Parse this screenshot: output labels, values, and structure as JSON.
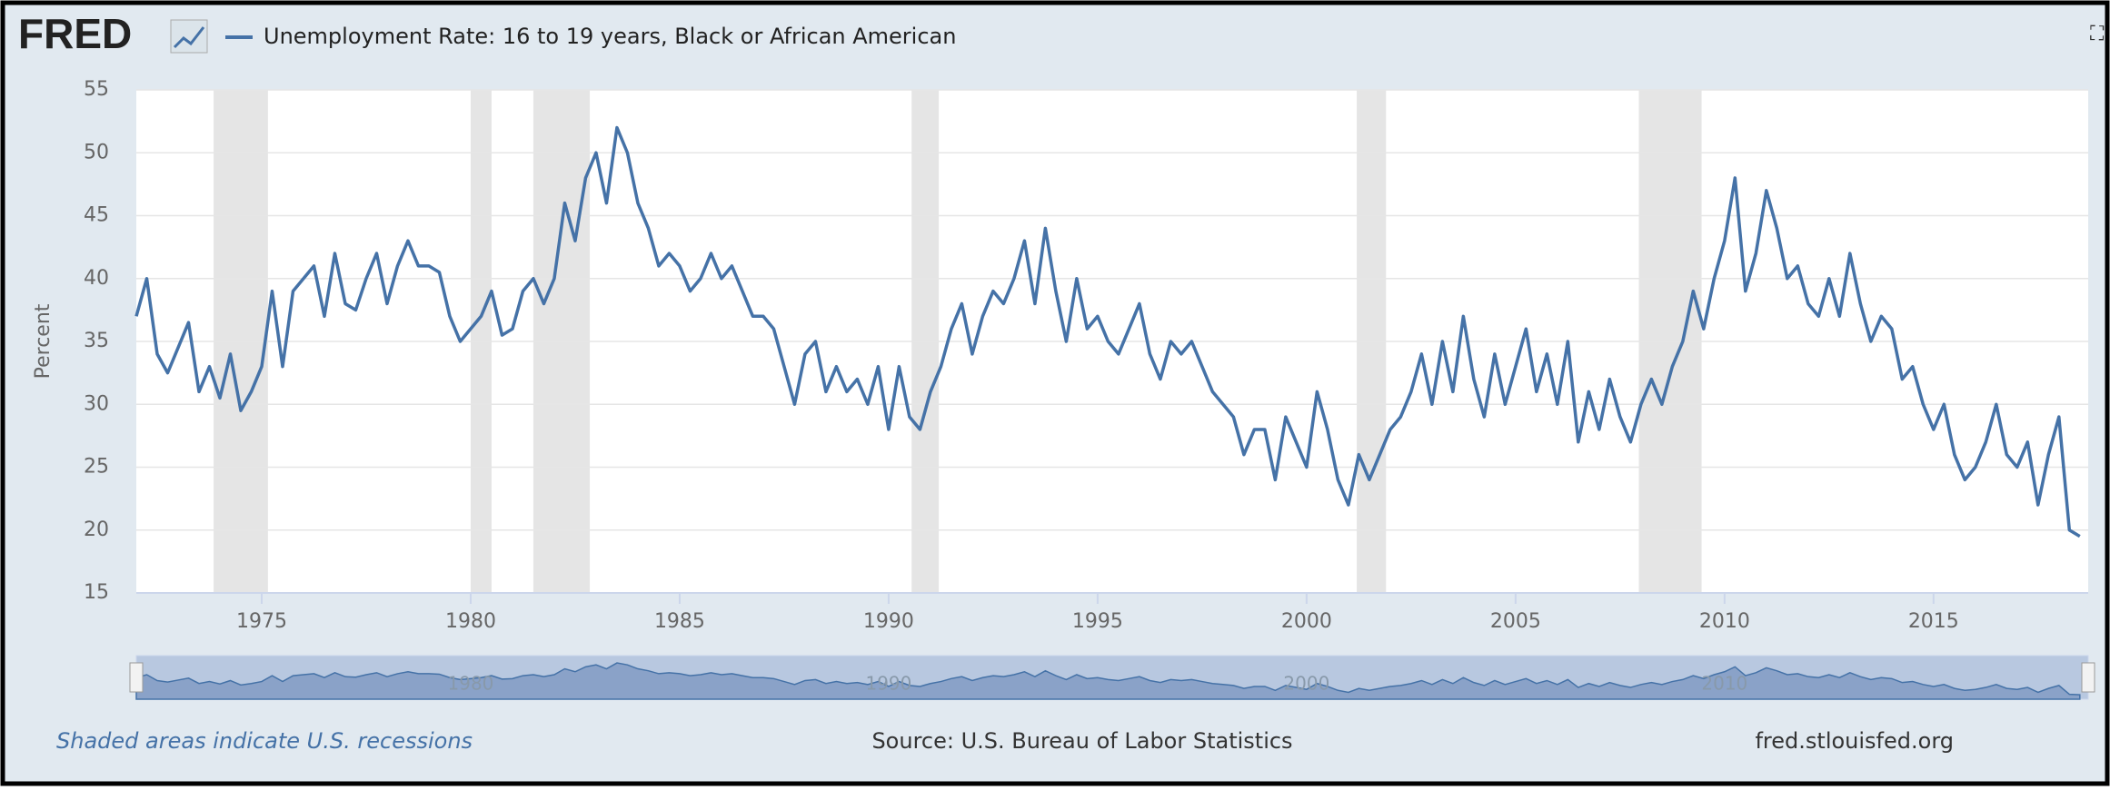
{
  "chart_data": {
    "type": "line",
    "logo": "FRED",
    "title": "Unemployment Rate: 16 to 19 years, Black or African American",
    "ylabel": "Percent",
    "series": [
      {
        "name": "Unemployment Rate: 16 to 19 years, Black or African American",
        "color": "#4572a7",
        "x": [
          1972,
          1972.25,
          1972.5,
          1972.75,
          1973,
          1973.25,
          1973.5,
          1973.75,
          1974,
          1974.25,
          1974.5,
          1974.75,
          1975,
          1975.25,
          1975.5,
          1975.75,
          1976,
          1976.25,
          1976.5,
          1976.75,
          1977,
          1977.25,
          1977.5,
          1977.75,
          1978,
          1978.25,
          1978.5,
          1978.75,
          1979,
          1979.25,
          1979.5,
          1979.75,
          1980,
          1980.25,
          1980.5,
          1980.75,
          1981,
          1981.25,
          1981.5,
          1981.75,
          1982,
          1982.25,
          1982.5,
          1982.75,
          1983,
          1983.25,
          1983.5,
          1983.75,
          1984,
          1984.25,
          1984.5,
          1984.75,
          1985,
          1985.25,
          1985.5,
          1985.75,
          1986,
          1986.25,
          1986.5,
          1986.75,
          1987,
          1987.25,
          1987.5,
          1987.75,
          1988,
          1988.25,
          1988.5,
          1988.75,
          1989,
          1989.25,
          1989.5,
          1989.75,
          1990,
          1990.25,
          1990.5,
          1990.75,
          1991,
          1991.25,
          1991.5,
          1991.75,
          1992,
          1992.25,
          1992.5,
          1992.75,
          1993,
          1993.25,
          1993.5,
          1993.75,
          1994,
          1994.25,
          1994.5,
          1994.75,
          1995,
          1995.25,
          1995.5,
          1995.75,
          1996,
          1996.25,
          1996.5,
          1996.75,
          1997,
          1997.25,
          1997.5,
          1997.75,
          1998,
          1998.25,
          1998.5,
          1998.75,
          1999,
          1999.25,
          1999.5,
          1999.75,
          2000,
          2000.25,
          2000.5,
          2000.75,
          2001,
          2001.25,
          2001.5,
          2001.75,
          2002,
          2002.25,
          2002.5,
          2002.75,
          2003,
          2003.25,
          2003.5,
          2003.75,
          2004,
          2004.25,
          2004.5,
          2004.75,
          2005,
          2005.25,
          2005.5,
          2005.75,
          2006,
          2006.25,
          2006.5,
          2006.75,
          2007,
          2007.25,
          2007.5,
          2007.75,
          2008,
          2008.25,
          2008.5,
          2008.75,
          2009,
          2009.25,
          2009.5,
          2009.75,
          2010,
          2010.25,
          2010.5,
          2010.75,
          2011,
          2011.25,
          2011.5,
          2011.75,
          2012,
          2012.25,
          2012.5,
          2012.75,
          2013,
          2013.25,
          2013.5,
          2013.75,
          2014,
          2014.25,
          2014.5,
          2014.75,
          2015,
          2015.25,
          2015.5,
          2015.75,
          2016,
          2016.25,
          2016.5,
          2016.75,
          2017,
          2017.25,
          2017.5,
          2017.75,
          2018,
          2018.25,
          2018.5
        ],
        "values": [
          37,
          40,
          34,
          32.5,
          34.5,
          36.5,
          31,
          33,
          30.5,
          34,
          29.5,
          31,
          33,
          39,
          33,
          39,
          40,
          41,
          37,
          42,
          38,
          37.5,
          40,
          42,
          38,
          41,
          43,
          41,
          41,
          40.5,
          37,
          35,
          36,
          37,
          39,
          35.5,
          36,
          39,
          40,
          38,
          40,
          46,
          43,
          48,
          50,
          46,
          52,
          50,
          46,
          44,
          41,
          42,
          41,
          39,
          40,
          42,
          40,
          41,
          39,
          37,
          37,
          36,
          33,
          30,
          34,
          35,
          31,
          33,
          31,
          32,
          30,
          33,
          28,
          33,
          29,
          28,
          31,
          33,
          36,
          38,
          34,
          37,
          39,
          38,
          40,
          43,
          38,
          44,
          39,
          35,
          40,
          36,
          37,
          35,
          34,
          36,
          38,
          34,
          32,
          35,
          34,
          35,
          33,
          31,
          30,
          29,
          26,
          28,
          28,
          24,
          29,
          27,
          25,
          31,
          28,
          24,
          22,
          26,
          24,
          26,
          28,
          29,
          31,
          34,
          30,
          35,
          31,
          37,
          32,
          29,
          34,
          30,
          33,
          36,
          31,
          34,
          30,
          35,
          27,
          31,
          28,
          32,
          29,
          27,
          30,
          32,
          30,
          33,
          35,
          39,
          36,
          40,
          43,
          48,
          39,
          42,
          47,
          44,
          40,
          41,
          38,
          37,
          40,
          37,
          42,
          38,
          35,
          37,
          36,
          32,
          33,
          30,
          28,
          30,
          26,
          24,
          25,
          27,
          30,
          26,
          25,
          27,
          22,
          26,
          29,
          20,
          19.5
        ]
      }
    ],
    "xlim": [
      1972,
      2018.7
    ],
    "xticks": [
      1975,
      1980,
      1985,
      1990,
      1995,
      2000,
      2005,
      2010,
      2015
    ],
    "ylim": [
      15,
      55
    ],
    "yticks": [
      15,
      20,
      25,
      30,
      35,
      40,
      45,
      50,
      55
    ],
    "grid": true,
    "recessions": [
      [
        1973.85,
        1975.15
      ],
      [
        1980,
        1980.5
      ],
      [
        1981.5,
        1982.85
      ],
      [
        1990.55,
        1991.2
      ],
      [
        2001.2,
        2001.9
      ],
      [
        2007.95,
        2009.45
      ]
    ],
    "navigator_xticks": [
      1980,
      1990,
      2000,
      2010
    ],
    "recession_note": "Shaded areas indicate U.S. recessions",
    "source": "Source: U.S. Bureau of Labor Statistics",
    "site": "fred.stlouisfed.org"
  }
}
